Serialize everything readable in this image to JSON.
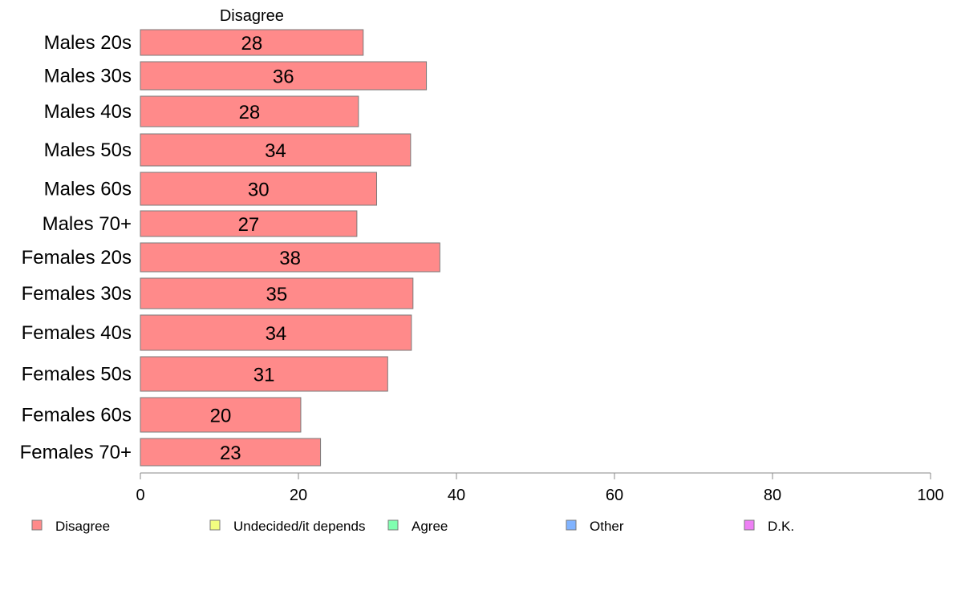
{
  "chart_data": {
    "type": "bar",
    "orientation": "horizontal",
    "stacked": true,
    "column_header": "Disagree",
    "categories": [
      "Males 20s",
      "Males 30s",
      "Males 40s",
      "Males 50s",
      "Males 60s",
      "Males 70+",
      "Females 20s",
      "Females 30s",
      "Females 40s",
      "Females 50s",
      "Females 60s",
      "Females 70+"
    ],
    "series": [
      {
        "name": "Disagree",
        "color": "#ff8a8a",
        "values": [
          28.2,
          36.2,
          27.6,
          34.2,
          29.9,
          27.4,
          37.9,
          34.5,
          34.3,
          31.3,
          20.3,
          22.8
        ],
        "labels": [
          "28",
          "36",
          "28",
          "34",
          "30",
          "27",
          "38",
          "35",
          "34",
          "31",
          "20",
          "23"
        ]
      }
    ],
    "xlim": [
      0,
      100
    ],
    "xticks": [
      0,
      20,
      40,
      60,
      80,
      100
    ],
    "xtick_labels": [
      "0",
      "20",
      "40",
      "60",
      "80",
      "100"
    ],
    "grid": false,
    "legend": {
      "position": "bottom",
      "items": [
        {
          "label": "Disagree",
          "color": "#ff8a8a"
        },
        {
          "label": "Undecided/it depends",
          "color": "#f2ff80"
        },
        {
          "label": "Agree",
          "color": "#80ffb0"
        },
        {
          "label": "Other",
          "color": "#80b3ff"
        },
        {
          "label": "D.K.",
          "color": "#ee7ff5"
        }
      ]
    }
  }
}
